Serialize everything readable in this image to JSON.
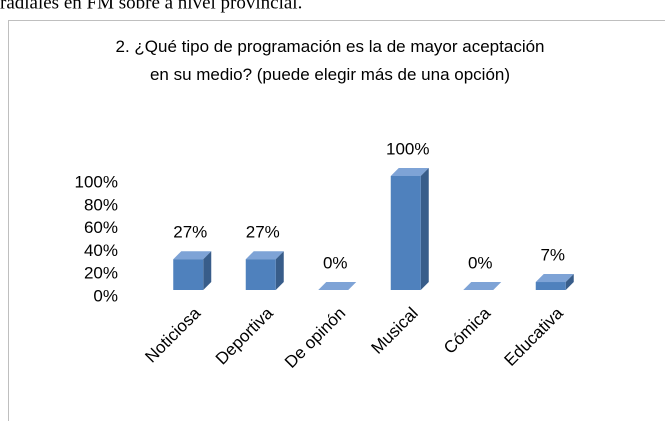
{
  "document_text": "radiales en FM sobre a nivel provincial.",
  "chart_data": {
    "type": "bar3d",
    "title": "2. ¿Qué tipo de programación es la de mayor aceptación en su medio? (puede elegir más de una opción)",
    "categories": [
      "Noticiosa",
      "Deportiva",
      "De opinón",
      "Musical",
      "Cómica",
      "Educativa"
    ],
    "values": [
      27,
      27,
      0,
      100,
      0,
      7
    ],
    "value_labels": [
      "27%",
      "27%",
      "0%",
      "100%",
      "0%",
      "7%"
    ],
    "color": "#4f81bd",
    "ylim": [
      0,
      100
    ],
    "yticks": [
      {
        "value": 0,
        "label": "0%"
      },
      {
        "value": 20,
        "label": "20%"
      },
      {
        "value": 40,
        "label": "40%"
      },
      {
        "value": 60,
        "label": "60%"
      },
      {
        "value": 80,
        "label": "80%"
      },
      {
        "value": 100,
        "label": "100%"
      }
    ],
    "grid": false
  }
}
